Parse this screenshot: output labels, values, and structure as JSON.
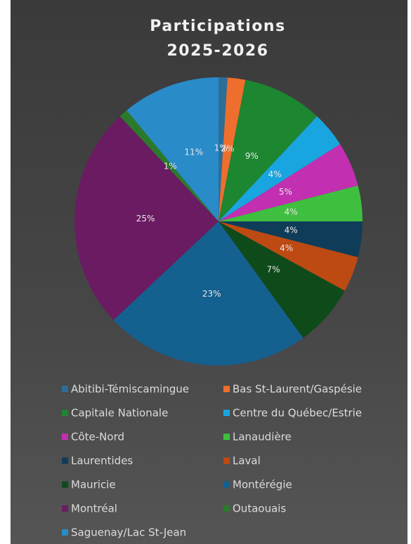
{
  "chart_data": {
    "type": "pie",
    "title": [
      "Participations",
      "2025-2026"
    ],
    "categories": [
      "Abitibi-Témiscamingue",
      "Bas St-Laurent/Gaspésie",
      "Capitale Nationale",
      "Centre du Québec/Estrie",
      "Côte-Nord",
      "Lanaudière",
      "Laurentides",
      "Laval",
      "Mauricie",
      "Montérégie",
      "Montréal",
      "Outaouais",
      "Saguenay/Lac St-Jean"
    ],
    "values": [
      1,
      2,
      9,
      4,
      5,
      4,
      4,
      4,
      7,
      23,
      25,
      1,
      11
    ],
    "value_labels": [
      "1%",
      "2%",
      "9%",
      "4%",
      "5%",
      "4%",
      "4%",
      "4%",
      "7%",
      "23%",
      "25%",
      "1%",
      "11%"
    ],
    "colors": [
      "#2b6f99",
      "#ee6f2d",
      "#1d8630",
      "#19a5df",
      "#c22fb0",
      "#3fbf3f",
      "#0f3d59",
      "#bd4a12",
      "#0f4a1b",
      "#14608f",
      "#6b1b61",
      "#2b7a2b",
      "#2a8bc9"
    ],
    "legend": "bottom"
  }
}
